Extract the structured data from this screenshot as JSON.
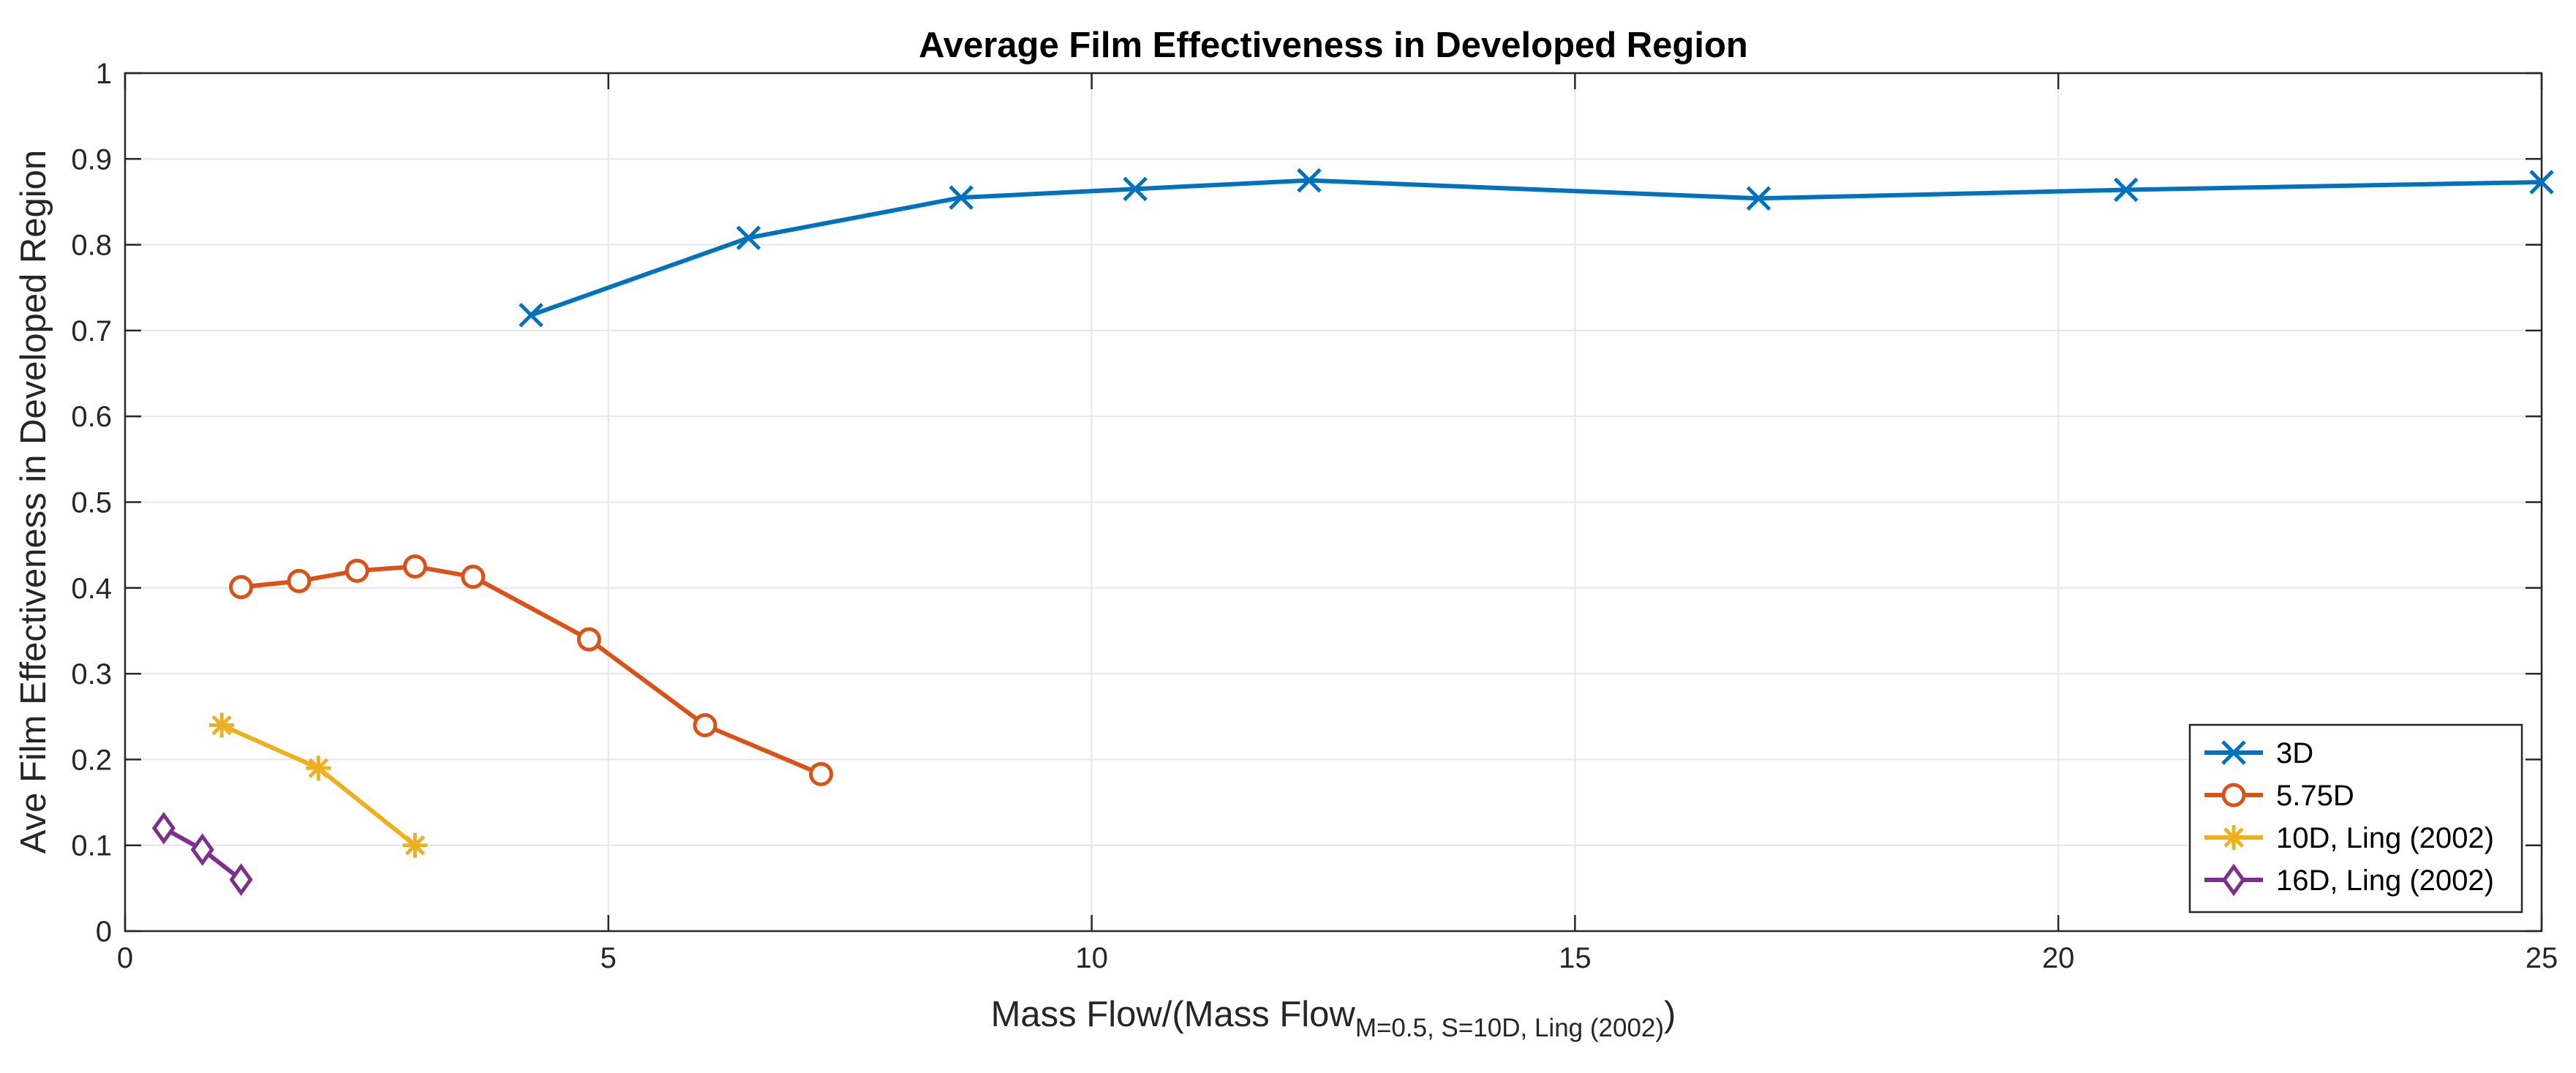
{
  "chart_data": {
    "type": "line",
    "title": "Average Film Effectiveness in Developed Region",
    "xlabel": {
      "main": "Mass Flow/(Mass Flow",
      "subscript": "M=0.5, S=10D, Ling (2002)",
      "close": ")"
    },
    "ylabel": "Ave Film Effectiveness in Developed Region",
    "xlim": [
      0,
      25
    ],
    "ylim": [
      0,
      1
    ],
    "xticks": [
      0,
      5,
      10,
      15,
      20,
      25
    ],
    "xtick_labels": [
      "0",
      "5",
      "10",
      "15",
      "20",
      "25"
    ],
    "yticks": [
      0,
      0.1,
      0.2,
      0.3,
      0.4,
      0.5,
      0.6,
      0.7,
      0.8,
      0.9,
      1
    ],
    "ytick_labels": [
      "0",
      "0.1",
      "0.2",
      "0.3",
      "0.4",
      "0.5",
      "0.6",
      "0.7",
      "0.8",
      "0.9",
      "1"
    ],
    "grid": true,
    "legend_position": "bottom-right",
    "series": [
      {
        "name": "3D",
        "color": "#0072bd",
        "marker": "x",
        "x": [
          4.2,
          6.45,
          8.65,
          10.45,
          12.25,
          16.9,
          20.7,
          25.0
        ],
        "y": [
          0.718,
          0.808,
          0.855,
          0.865,
          0.875,
          0.854,
          0.864,
          0.873
        ]
      },
      {
        "name": "5.75D",
        "color": "#d95319",
        "marker": "o",
        "x": [
          1.2,
          1.8,
          2.4,
          3.0,
          3.6,
          4.8,
          6.0,
          7.2
        ],
        "y": [
          0.401,
          0.408,
          0.42,
          0.425,
          0.413,
          0.34,
          0.24,
          0.183
        ]
      },
      {
        "name": "10D, Ling (2002)",
        "color": "#edb120",
        "marker": "*",
        "x": [
          1.0,
          2.0,
          3.0
        ],
        "y": [
          0.24,
          0.19,
          0.1
        ]
      },
      {
        "name": "16D, Ling (2002)",
        "color": "#7e2f8e",
        "marker": "d",
        "x": [
          0.4,
          0.8,
          1.2
        ],
        "y": [
          0.12,
          0.095,
          0.06
        ]
      }
    ]
  }
}
